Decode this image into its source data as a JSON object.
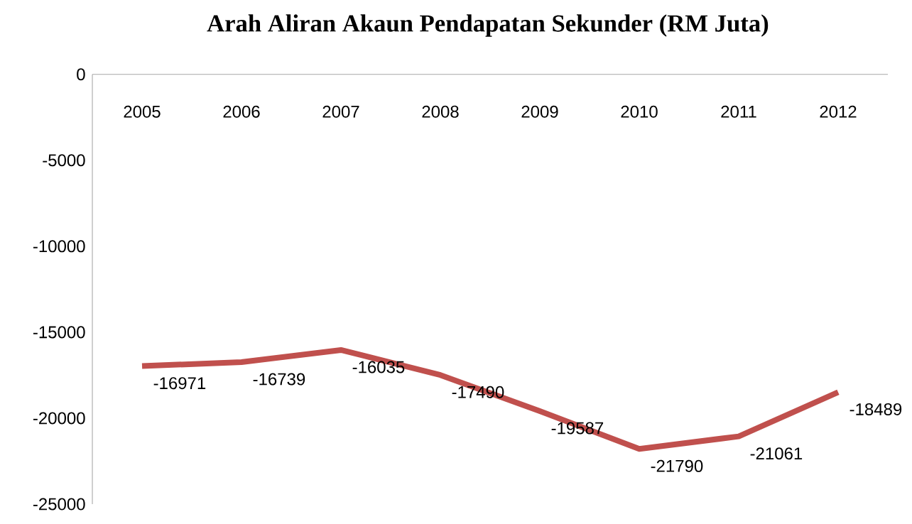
{
  "chart_data": {
    "type": "line",
    "title": "Arah Aliran Akaun Pendapatan Sekunder (RM Juta)",
    "categories": [
      "2005",
      "2006",
      "2007",
      "2008",
      "2009",
      "2010",
      "2011",
      "2012"
    ],
    "series": [
      {
        "color": "#c0504d",
        "values": [
          -16971,
          -16739,
          -16035,
          -17490,
          -19587,
          -21790,
          -21061,
          -18489
        ]
      }
    ],
    "ylim": [
      -25000,
      0
    ],
    "yticks": [
      -25000,
      -20000,
      -15000,
      -10000,
      -5000,
      0
    ],
    "data_labels": true,
    "grid": false,
    "marker": "none",
    "line_style": "solid"
  }
}
